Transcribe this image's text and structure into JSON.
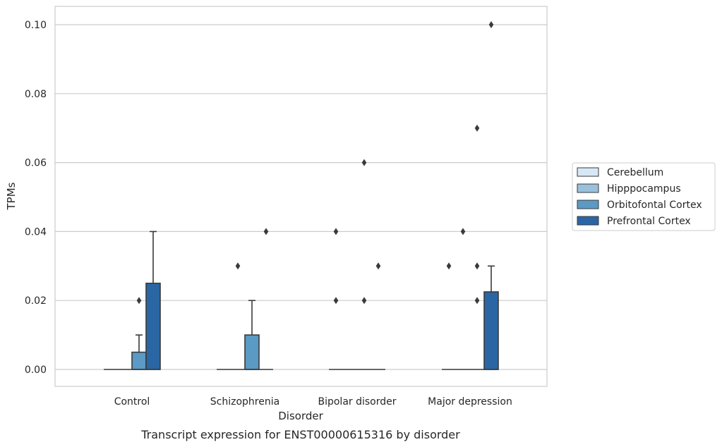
{
  "chart_data": {
    "type": "box",
    "title": "",
    "caption": "Transcript expression for ENST00000615316 by disorder",
    "xlabel": "Disorder",
    "ylabel": "TPMs",
    "ylim": [
      -0.005,
      0.105
    ],
    "yticks": [
      "0.00",
      "0.02",
      "0.04",
      "0.06",
      "0.08",
      "0.10"
    ],
    "grid": "horizontal",
    "legend_position": "right",
    "categories": [
      "Control",
      "Schizophrenia",
      "Bipolar disorder",
      "Major depression"
    ],
    "series": [
      {
        "name": "Cerebellum",
        "color": "#d8e7f5",
        "boxes": [
          {
            "q1": 0,
            "median": 0,
            "q3": 0,
            "whisker_low": 0,
            "whisker_high": 0,
            "outliers": []
          },
          {
            "q1": 0,
            "median": 0,
            "q3": 0,
            "whisker_low": 0,
            "whisker_high": 0,
            "outliers": []
          },
          {
            "q1": 0,
            "median": 0,
            "q3": 0,
            "whisker_low": 0,
            "whisker_high": 0,
            "outliers": [
              0.02,
              0.04
            ]
          },
          {
            "q1": 0,
            "median": 0,
            "q3": 0,
            "whisker_low": 0,
            "whisker_high": 0,
            "outliers": [
              0.03
            ]
          }
        ]
      },
      {
        "name": "Hipppocampus",
        "color": "#9ac1dc",
        "boxes": [
          {
            "q1": 0,
            "median": 0,
            "q3": 0,
            "whisker_low": 0,
            "whisker_high": 0,
            "outliers": []
          },
          {
            "q1": 0,
            "median": 0,
            "q3": 0,
            "whisker_low": 0,
            "whisker_high": 0,
            "outliers": [
              0.03
            ]
          },
          {
            "q1": 0,
            "median": 0,
            "q3": 0,
            "whisker_low": 0,
            "whisker_high": 0,
            "outliers": []
          },
          {
            "q1": 0,
            "median": 0,
            "q3": 0,
            "whisker_low": 0,
            "whisker_high": 0,
            "outliers": [
              0.04
            ]
          }
        ]
      },
      {
        "name": "Orbitofontal Cortex",
        "color": "#5a9ac5",
        "boxes": [
          {
            "q1": 0,
            "median": 0,
            "q3": 0.005,
            "whisker_low": 0,
            "whisker_high": 0.01,
            "outliers": [
              0.02
            ]
          },
          {
            "q1": 0,
            "median": 0,
            "q3": 0.01,
            "whisker_low": 0,
            "whisker_high": 0.02,
            "outliers": []
          },
          {
            "q1": 0,
            "median": 0,
            "q3": 0,
            "whisker_low": 0,
            "whisker_high": 0,
            "outliers": [
              0.02,
              0.06
            ]
          },
          {
            "q1": 0,
            "median": 0,
            "q3": 0,
            "whisker_low": 0,
            "whisker_high": 0,
            "outliers": [
              0.02,
              0.03,
              0.07
            ]
          }
        ]
      },
      {
        "name": "Prefrontal Cortex",
        "color": "#2a66a4",
        "boxes": [
          {
            "q1": 0,
            "median": 0,
            "q3": 0.025,
            "whisker_low": 0,
            "whisker_high": 0.04,
            "outliers": []
          },
          {
            "q1": 0,
            "median": 0,
            "q3": 0,
            "whisker_low": 0,
            "whisker_high": 0,
            "outliers": [
              0.04
            ]
          },
          {
            "q1": 0,
            "median": 0,
            "q3": 0,
            "whisker_low": 0,
            "whisker_high": 0,
            "outliers": [
              0.03
            ]
          },
          {
            "q1": 0,
            "median": 0,
            "q3": 0.0225,
            "whisker_low": 0,
            "whisker_high": 0.03,
            "outliers": [
              0.1
            ]
          }
        ]
      }
    ]
  }
}
